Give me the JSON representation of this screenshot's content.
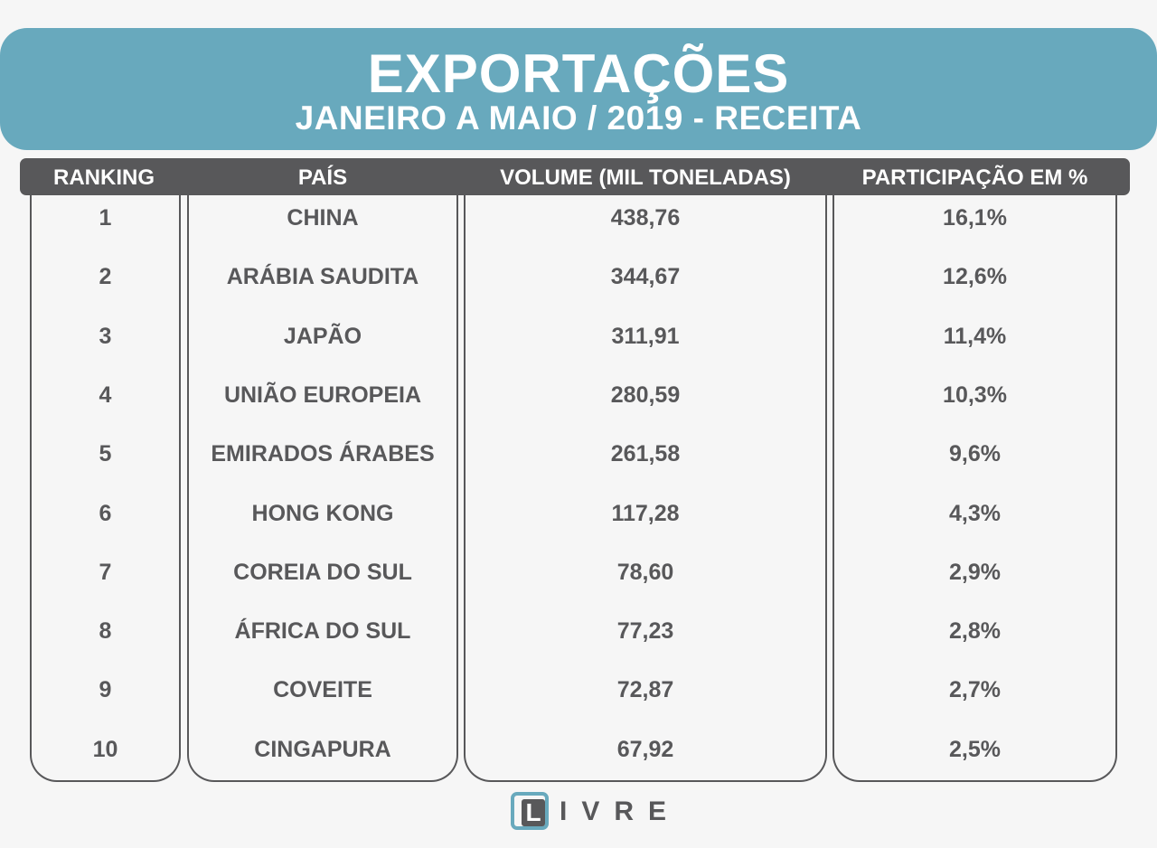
{
  "banner": {
    "title": "EXPORTAÇÕES",
    "subtitle": "JANEIRO A MAIO / 2019 - RECEITA",
    "color": "#68a9bd"
  },
  "chart_data": {
    "type": "table",
    "title": "EXPORTAÇÕES",
    "subtitle": "JANEIRO A MAIO / 2019 - RECEITA",
    "columns": [
      "RANKING",
      "PAÍS",
      "VOLUME (MIL TONELADAS)",
      "PARTICIPAÇÃO EM %"
    ],
    "rows": [
      [
        "1",
        "CHINA",
        "438,76",
        "16,1%"
      ],
      [
        "2",
        "ARÁBIA SAUDITA",
        "344,67",
        "12,6%"
      ],
      [
        "3",
        "JAPÃO",
        "311,91",
        "11,4%"
      ],
      [
        "4",
        "UNIÃO EUROPEIA",
        "280,59",
        "10,3%"
      ],
      [
        "5",
        "EMIRADOS ÁRABES",
        "261,58",
        "9,6%"
      ],
      [
        "6",
        "HONG KONG",
        "117,28",
        "4,3%"
      ],
      [
        "7",
        "COREIA DO SUL",
        "78,60",
        "2,9%"
      ],
      [
        "8",
        "ÁFRICA DO SUL",
        "77,23",
        "2,8%"
      ],
      [
        "9",
        "COVEITE",
        "72,87",
        "2,7%"
      ],
      [
        "10",
        "CINGAPURA",
        "67,92",
        "2,5%"
      ]
    ]
  },
  "logo": {
    "first_letter": "L",
    "rest": "IVRE"
  },
  "colors": {
    "header": "#58585a",
    "text": "#58585a",
    "accent": "#68a9bd",
    "background": "#f6f6f6"
  }
}
